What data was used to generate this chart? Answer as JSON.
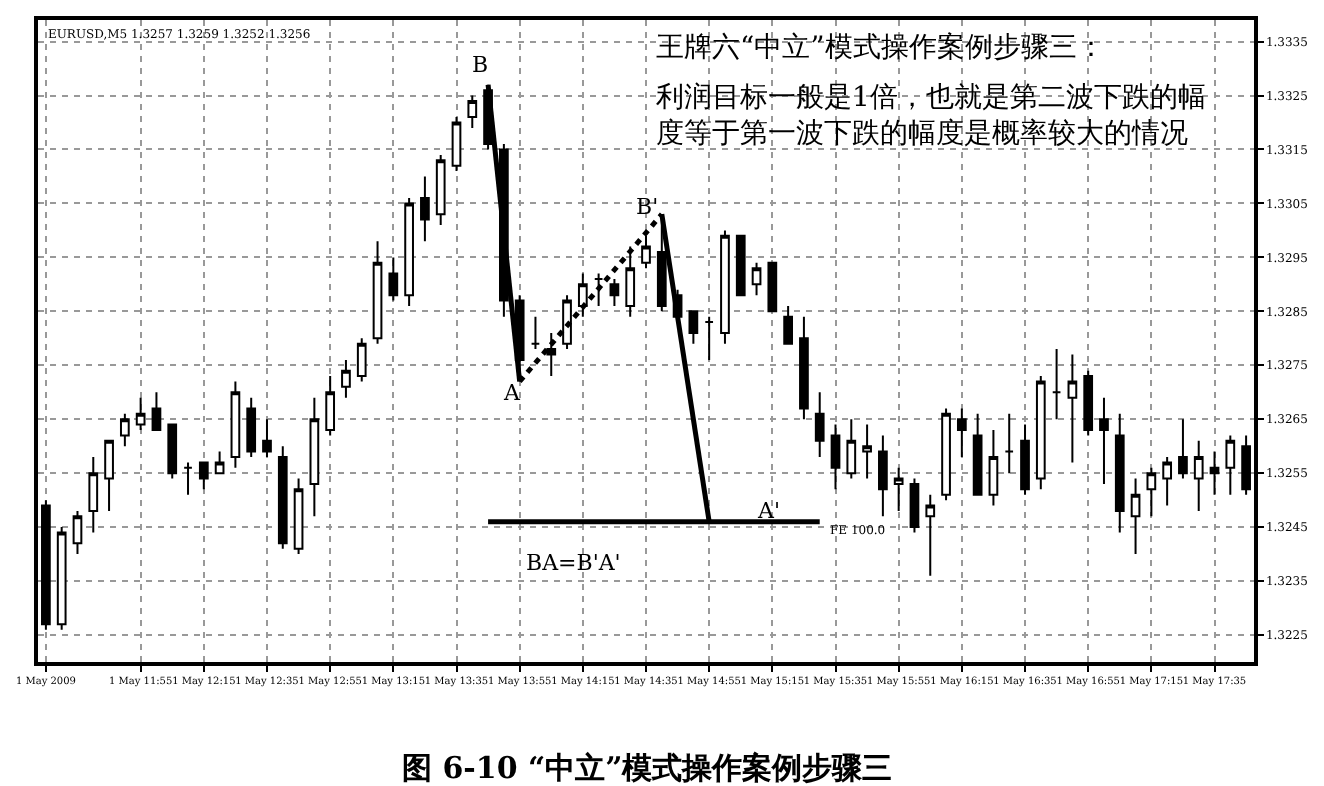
{
  "chart_data": {
    "type": "candlestick",
    "title": "图 6-10 “中立”模式操作案例步骤三",
    "categories": [
      "1 May 2009",
      null,
      null,
      null,
      null,
      null,
      "1 May 11:55",
      null,
      null,
      null,
      "1 May 12:15",
      null,
      null,
      null,
      "1 May 12:35",
      null,
      null,
      null,
      "1 May 12:55",
      null,
      null,
      null,
      "1 May 13:15",
      null,
      null,
      null,
      "1 May 13:35",
      null,
      null,
      null,
      "1 May 13:55",
      null,
      null,
      null,
      "1 May 14:15",
      null,
      null,
      null,
      "1 May 14:35",
      null,
      null,
      null,
      "1 May 14:55",
      null,
      null,
      null,
      "1 May 15:15",
      null,
      null,
      null,
      "1 May 15:35",
      null,
      null,
      null,
      "1 May 15:55",
      null,
      null,
      null,
      "1 May 16:15",
      null,
      null,
      null,
      "1 May 16:35",
      null,
      null,
      null,
      "1 May 16:55",
      null,
      null,
      null,
      "1 May 17:15",
      null,
      null,
      null,
      "1 May 17:35",
      null,
      null
    ],
    "ohlc": [
      [
        1.3249,
        1.325,
        1.3226,
        1.3227
      ],
      [
        1.3227,
        1.3245,
        1.3226,
        1.3244
      ],
      [
        1.3242,
        1.3248,
        1.324,
        1.3247
      ],
      [
        1.3248,
        1.3258,
        1.3244,
        1.3255
      ],
      [
        1.3254,
        1.3261,
        1.3248,
        1.3261
      ],
      [
        1.3262,
        1.3266,
        1.326,
        1.3265
      ],
      [
        1.3264,
        1.3269,
        1.3263,
        1.3266
      ],
      [
        1.3267,
        1.327,
        1.3263,
        1.3263
      ],
      [
        1.3264,
        1.3264,
        1.3254,
        1.3255
      ],
      [
        1.3256,
        1.3257,
        1.3251,
        1.3256
      ],
      [
        1.3257,
        1.3257,
        1.3252,
        1.3254
      ],
      [
        1.3255,
        1.3259,
        1.3255,
        1.3257
      ],
      [
        1.3258,
        1.3272,
        1.3256,
        1.327
      ],
      [
        1.3267,
        1.3269,
        1.3258,
        1.3259
      ],
      [
        1.3261,
        1.3265,
        1.3258,
        1.3259
      ],
      [
        1.3258,
        1.326,
        1.3241,
        1.3242
      ],
      [
        1.3241,
        1.3254,
        1.324,
        1.3252
      ],
      [
        1.3253,
        1.3269,
        1.3247,
        1.3265
      ],
      [
        1.3263,
        1.3273,
        1.3262,
        1.327
      ],
      [
        1.3271,
        1.3276,
        1.3269,
        1.3274
      ],
      [
        1.3273,
        1.328,
        1.3272,
        1.3279
      ],
      [
        1.328,
        1.3298,
        1.3279,
        1.3294
      ],
      [
        1.3292,
        1.3295,
        1.3287,
        1.3288
      ],
      [
        1.3288,
        1.3306,
        1.3286,
        1.3305
      ],
      [
        1.3306,
        1.331,
        1.3298,
        1.3302
      ],
      [
        1.3303,
        1.3314,
        1.3301,
        1.3313
      ],
      [
        1.3312,
        1.3321,
        1.3311,
        1.332
      ],
      [
        1.3321,
        1.3325,
        1.3319,
        1.3324
      ],
      [
        1.3326,
        1.3327,
        1.3315,
        1.3316
      ],
      [
        1.3315,
        1.3316,
        1.3284,
        1.3287
      ],
      [
        1.3287,
        1.3288,
        1.3272,
        1.3276
      ],
      [
        1.3279,
        1.3284,
        1.3278,
        1.3279
      ],
      [
        1.3278,
        1.3281,
        1.3273,
        1.3277
      ],
      [
        1.3279,
        1.3288,
        1.3278,
        1.3287
      ],
      [
        1.3286,
        1.3292,
        1.3284,
        1.329
      ],
      [
        1.3291,
        1.3292,
        1.3286,
        1.3291
      ],
      [
        1.329,
        1.3291,
        1.3286,
        1.3288
      ],
      [
        1.3286,
        1.3297,
        1.3284,
        1.3293
      ],
      [
        1.3294,
        1.3299,
        1.3293,
        1.3297
      ],
      [
        1.3296,
        1.3303,
        1.3285,
        1.3286
      ],
      [
        1.3288,
        1.3289,
        1.3283,
        1.3284
      ],
      [
        1.3285,
        1.3285,
        1.3279,
        1.3281
      ],
      [
        1.3283,
        1.3284,
        1.3276,
        1.3283
      ],
      [
        1.3281,
        1.33,
        1.3279,
        1.3299
      ],
      [
        1.3299,
        1.3299,
        1.3288,
        1.3288
      ],
      [
        1.329,
        1.3294,
        1.3288,
        1.3293
      ],
      [
        1.3294,
        1.3294,
        1.3285,
        1.3285
      ],
      [
        1.3284,
        1.3286,
        1.3279,
        1.3279
      ],
      [
        1.328,
        1.3284,
        1.3265,
        1.3267
      ],
      [
        1.3266,
        1.327,
        1.3258,
        1.3261
      ],
      [
        1.3262,
        1.3264,
        1.3252,
        1.3256
      ],
      [
        1.3255,
        1.3265,
        1.3254,
        1.3261
      ],
      [
        1.3259,
        1.3264,
        1.3254,
        1.326
      ],
      [
        1.3259,
        1.3262,
        1.3247,
        1.3252
      ],
      [
        1.3253,
        1.3256,
        1.3248,
        1.3254
      ],
      [
        1.3253,
        1.3254,
        1.3244,
        1.3245
      ],
      [
        1.3247,
        1.3251,
        1.3236,
        1.3249
      ],
      [
        1.3251,
        1.3267,
        1.325,
        1.3266
      ],
      [
        1.3265,
        1.3267,
        1.3258,
        1.3263
      ],
      [
        1.3262,
        1.3266,
        1.3251,
        1.3251
      ],
      [
        1.3251,
        1.3263,
        1.3249,
        1.3258
      ],
      [
        1.3259,
        1.3266,
        1.3255,
        1.3259
      ],
      [
        1.3261,
        1.3264,
        1.3251,
        1.3252
      ],
      [
        1.3254,
        1.3273,
        1.3252,
        1.3272
      ],
      [
        1.327,
        1.3278,
        1.3265,
        1.327
      ],
      [
        1.3269,
        1.3277,
        1.3257,
        1.3272
      ],
      [
        1.3273,
        1.3274,
        1.3262,
        1.3263
      ],
      [
        1.3265,
        1.3269,
        1.3253,
        1.3263
      ],
      [
        1.3262,
        1.3266,
        1.3244,
        1.3248
      ],
      [
        1.3247,
        1.3254,
        1.324,
        1.3251
      ],
      [
        1.3252,
        1.3256,
        1.3247,
        1.3255
      ],
      [
        1.3254,
        1.3258,
        1.3249,
        1.3257
      ],
      [
        1.3258,
        1.3265,
        1.3254,
        1.3255
      ],
      [
        1.3254,
        1.3261,
        1.3248,
        1.3258
      ],
      [
        1.3256,
        1.3259,
        1.3251,
        1.3255
      ],
      [
        1.3256,
        1.3262,
        1.3251,
        1.3261
      ],
      [
        1.326,
        1.3262,
        1.3251,
        1.3252
      ]
    ],
    "series": [
      {
        "type": "line",
        "color": "#000000",
        "line_style": "solid",
        "values": [
          null,
          null,
          null,
          null,
          null,
          null,
          null,
          null,
          null,
          null,
          null,
          null,
          null,
          null,
          null,
          null,
          null,
          null,
          null,
          null,
          null,
          null,
          null,
          null,
          null,
          null,
          null,
          null,
          1.3327,
          null,
          1.3272,
          null,
          null,
          null,
          null,
          null,
          null,
          null,
          null,
          null,
          null,
          null,
          null,
          null,
          null,
          null,
          null,
          null,
          null,
          null,
          null,
          null,
          null,
          null,
          null,
          null,
          null,
          null,
          null,
          null,
          null,
          null,
          null,
          null,
          null,
          null,
          null,
          null,
          null,
          null,
          null,
          null,
          null,
          null,
          null,
          null,
          null
        ]
      },
      {
        "type": "line",
        "color": "#000000",
        "line_style": "dotted",
        "values": [
          null,
          null,
          null,
          null,
          null,
          null,
          null,
          null,
          null,
          null,
          null,
          null,
          null,
          null,
          null,
          null,
          null,
          null,
          null,
          null,
          null,
          null,
          null,
          null,
          null,
          null,
          null,
          null,
          null,
          null,
          1.3272,
          null,
          null,
          null,
          null,
          null,
          null,
          null,
          null,
          1.3303,
          null,
          null,
          null,
          null,
          null,
          null,
          null,
          null,
          null,
          null,
          null,
          null,
          null,
          null,
          null,
          null,
          null,
          null,
          null,
          null,
          null,
          null,
          null,
          null,
          null,
          null,
          null,
          null,
          null,
          null,
          null,
          null,
          null,
          null,
          null,
          null,
          null
        ]
      },
      {
        "type": "line",
        "color": "#000000",
        "line_style": "solid",
        "values": [
          null,
          null,
          null,
          null,
          null,
          null,
          null,
          null,
          null,
          null,
          null,
          null,
          null,
          null,
          null,
          null,
          null,
          null,
          null,
          null,
          null,
          null,
          null,
          null,
          null,
          null,
          null,
          null,
          null,
          null,
          null,
          null,
          null,
          null,
          null,
          null,
          null,
          null,
          null,
          1.3303,
          null,
          null,
          1.3246,
          null,
          null,
          null,
          null,
          null,
          null,
          null,
          null,
          null,
          null,
          null,
          null,
          null,
          null,
          null,
          null,
          null,
          null,
          null,
          null,
          null,
          null,
          null,
          null,
          null,
          null,
          null,
          null,
          null,
          null,
          null,
          null,
          null,
          null
        ]
      },
      {
        "type": "line",
        "color": "#000000",
        "line_style": "solid",
        "values": [
          null,
          null,
          null,
          null,
          null,
          null,
          null,
          null,
          null,
          null,
          null,
          null,
          null,
          null,
          null,
          null,
          null,
          null,
          null,
          null,
          null,
          null,
          null,
          null,
          null,
          null,
          null,
          null,
          1.3246,
          null,
          null,
          null,
          null,
          null,
          null,
          null,
          null,
          null,
          null,
          null,
          null,
          null,
          null,
          null,
          null,
          null,
          null,
          null,
          null,
          1.3246,
          null,
          null,
          null,
          null,
          null,
          null,
          null,
          null,
          null,
          null,
          null,
          null,
          null,
          null,
          null,
          null,
          null,
          null,
          null,
          null,
          null,
          null,
          null,
          null,
          null,
          null,
          null
        ]
      }
    ],
    "annotations": [
      "王牌六“中立”模式操作案例步骤三：",
      "利润目标一般是1倍，也就是第二波下跌的幅度等于第一波下跌的幅度是概率较大的情况",
      "EURUSD,M5 1.3257 1.3259 1.3252 1.3256",
      "B",
      "A",
      "B'",
      "A'",
      "FE 100.0",
      "BA=B'A'"
    ],
    "ylim": [
      1.322,
      1.3339
    ],
    "yticks": [
      1.3225,
      1.3235,
      1.3245,
      1.3255,
      1.3265,
      1.3275,
      1.3285,
      1.3295,
      1.3305,
      1.3315,
      1.3325,
      1.3335
    ],
    "grid": true
  }
}
